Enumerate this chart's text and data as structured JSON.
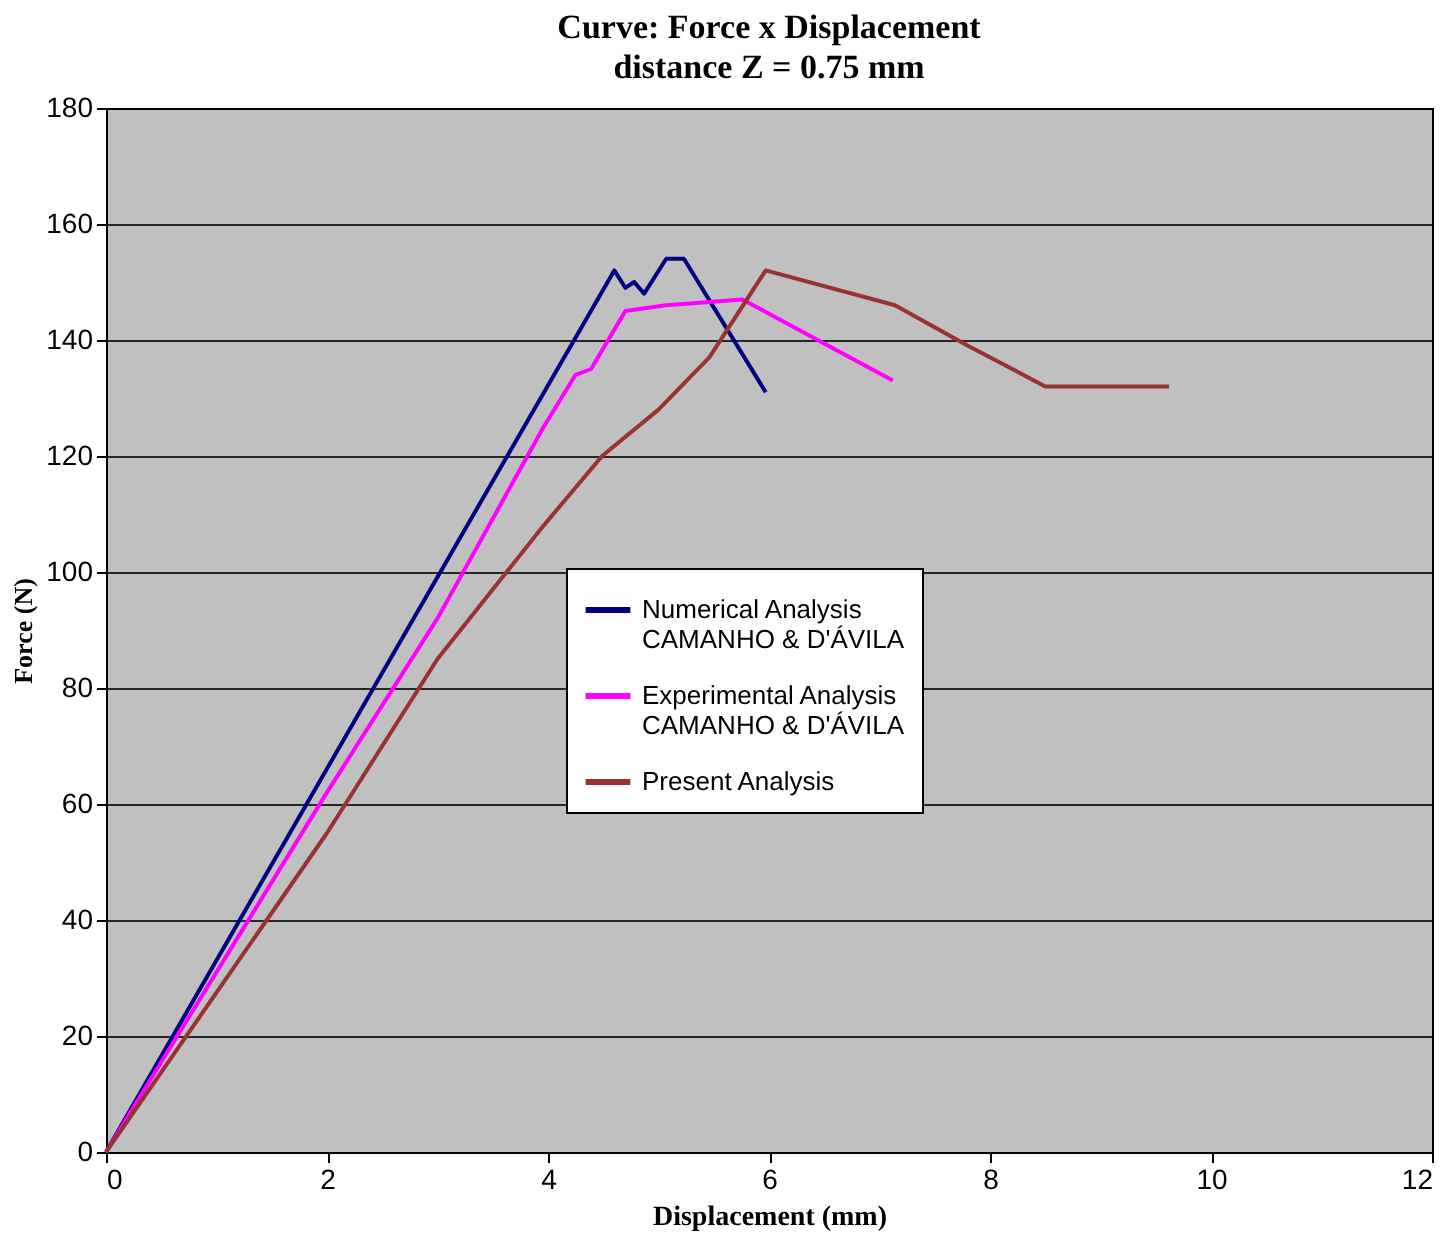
{
  "chart_data": {
    "type": "line",
    "title": "Curve:  Force x Displacement",
    "subtitle": "distance  Z  = 0.75 mm",
    "xlabel": "Displacement (mm)",
    "ylabel": "Force (N)",
    "xlim": [
      0,
      12
    ],
    "xticks": [
      0,
      2,
      4,
      6,
      8,
      10,
      12
    ],
    "ylim": [
      0,
      180
    ],
    "yticks": [
      0,
      20,
      40,
      60,
      80,
      100,
      120,
      140,
      160,
      180
    ],
    "grid": "y",
    "legend": "bottom right",
    "marker": "none",
    "line_style": "solid",
    "series": [
      {
        "name": "Numerical Analysis\nCAMANHO & D'ÁVILA",
        "color": "#000080",
        "x": [
          0,
          4.6,
          4.7,
          4.78,
          4.87,
          5.07,
          5.23,
          5.97
        ],
        "values": [
          0,
          152,
          149,
          150,
          148,
          154,
          154,
          131
        ]
      },
      {
        "name": "Experimental Analysis\nCAMANHO & D'ÁVILA",
        "color": "#ff00ff",
        "x": [
          0,
          2,
          3,
          3.96,
          4.25,
          4.39,
          4.7,
          5.07,
          5.76,
          7.12
        ],
        "values": [
          0,
          62,
          92,
          125,
          134,
          135,
          145,
          146,
          147,
          133
        ]
      },
      {
        "name": "Present Analysis",
        "color": "#993333",
        "x": [
          0,
          2,
          3,
          3.96,
          4.49,
          5.0,
          5.46,
          5.97,
          7.14,
          7.8,
          8.5,
          9.62
        ],
        "values": [
          0,
          55,
          85,
          108,
          120,
          128,
          137,
          152,
          146,
          139,
          132,
          132
        ]
      }
    ]
  }
}
